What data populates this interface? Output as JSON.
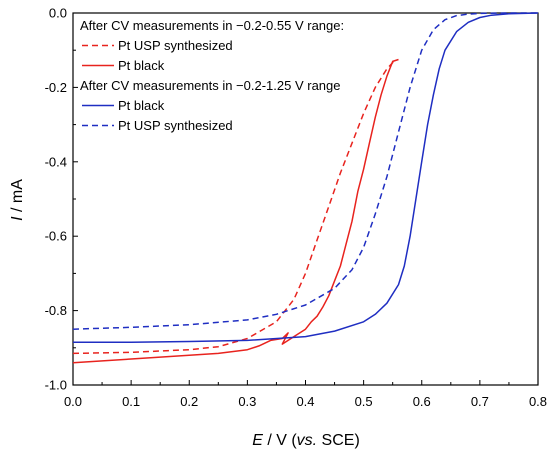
{
  "chart_data": {
    "type": "line",
    "xlabel": {
      "symbol": "E",
      "rest": " / V (",
      "italic": "vs.",
      "tail": " SCE)"
    },
    "ylabel": {
      "symbol": "I",
      "rest": " / mA"
    },
    "xlim": [
      0.0,
      0.8
    ],
    "ylim": [
      -1.0,
      0.0
    ],
    "x_ticks": [
      "0.0",
      "0.1",
      "0.2",
      "0.3",
      "0.4",
      "0.5",
      "0.6",
      "0.7",
      "0.8"
    ],
    "y_ticks": [
      "0.0",
      "-0.2",
      "-0.4",
      "-0.6",
      "-0.8",
      "-1.0"
    ],
    "grid": false,
    "legend": {
      "placement": "top-left",
      "groups": [
        {
          "heading": "After CV measurements in −0.2-0.55 V range:",
          "items": [
            {
              "series": 0,
              "label": "Pt USP synthesized"
            },
            {
              "series": 1,
              "label": "Pt black"
            }
          ]
        },
        {
          "heading": "After CV measurements in −0.2-1.25 V range",
          "items": [
            {
              "series": 2,
              "label": "Pt black"
            },
            {
              "series": 3,
              "label": "Pt USP synthesized"
            }
          ]
        }
      ]
    },
    "series": [
      {
        "name": "Pt USP synthesized",
        "group": "−0.2-0.55 V",
        "color": "#e8231e",
        "dash": "dashed",
        "x": [
          0.0,
          0.1,
          0.2,
          0.25,
          0.3,
          0.35,
          0.38,
          0.4,
          0.42,
          0.44,
          0.46,
          0.48,
          0.5,
          0.52,
          0.54,
          0.555
        ],
        "y": [
          -0.915,
          -0.912,
          -0.905,
          -0.897,
          -0.875,
          -0.83,
          -0.77,
          -0.7,
          -0.61,
          -0.52,
          -0.43,
          -0.35,
          -0.27,
          -0.2,
          -0.15,
          -0.125
        ]
      },
      {
        "name": "Pt black",
        "group": "−0.2-0.55 V",
        "color": "#e8231e",
        "dash": "solid",
        "x": [
          0.0,
          0.1,
          0.2,
          0.25,
          0.3,
          0.32,
          0.34,
          0.36,
          0.37,
          0.36,
          0.38,
          0.4,
          0.41,
          0.42,
          0.43,
          0.44,
          0.45,
          0.46,
          0.47,
          0.48,
          0.49,
          0.5,
          0.51,
          0.52,
          0.53,
          0.54,
          0.55,
          0.56
        ],
        "y": [
          -0.94,
          -0.93,
          -0.92,
          -0.915,
          -0.905,
          -0.895,
          -0.88,
          -0.875,
          -0.86,
          -0.89,
          -0.87,
          -0.85,
          -0.83,
          -0.815,
          -0.79,
          -0.76,
          -0.72,
          -0.68,
          -0.62,
          -0.56,
          -0.48,
          -0.42,
          -0.35,
          -0.28,
          -0.22,
          -0.17,
          -0.13,
          -0.125
        ]
      },
      {
        "name": "Pt black",
        "group": "−0.2-1.25 V",
        "color": "#1f2ec2",
        "dash": "solid",
        "x": [
          0.0,
          0.1,
          0.2,
          0.3,
          0.4,
          0.45,
          0.5,
          0.52,
          0.54,
          0.56,
          0.57,
          0.58,
          0.59,
          0.6,
          0.61,
          0.62,
          0.63,
          0.64,
          0.66,
          0.68,
          0.7,
          0.72,
          0.75,
          0.8
        ],
        "y": [
          -0.885,
          -0.885,
          -0.883,
          -0.88,
          -0.87,
          -0.855,
          -0.83,
          -0.81,
          -0.78,
          -0.73,
          -0.68,
          -0.6,
          -0.5,
          -0.4,
          -0.3,
          -0.22,
          -0.15,
          -0.1,
          -0.05,
          -0.025,
          -0.012,
          -0.006,
          -0.002,
          0.0
        ]
      },
      {
        "name": "Pt USP synthesized",
        "group": "−0.2-1.25 V",
        "color": "#1f2ec2",
        "dash": "dashed",
        "x": [
          0.0,
          0.1,
          0.2,
          0.3,
          0.35,
          0.4,
          0.45,
          0.48,
          0.5,
          0.52,
          0.54,
          0.56,
          0.58,
          0.6,
          0.62,
          0.64,
          0.66,
          0.68,
          0.7,
          0.75,
          0.8
        ],
        "y": [
          -0.85,
          -0.845,
          -0.838,
          -0.825,
          -0.81,
          -0.785,
          -0.74,
          -0.69,
          -0.63,
          -0.54,
          -0.44,
          -0.32,
          -0.2,
          -0.1,
          -0.045,
          -0.018,
          -0.007,
          -0.003,
          -0.001,
          0.0,
          0.0
        ]
      }
    ]
  }
}
